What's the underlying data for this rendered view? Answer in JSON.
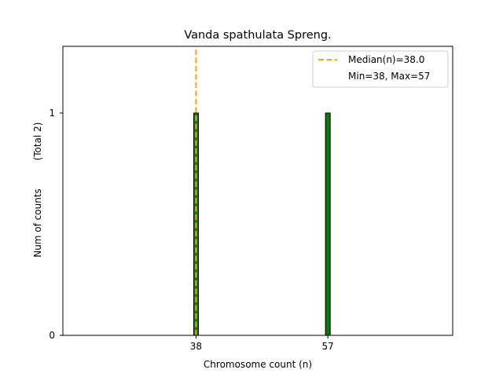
{
  "chart_data": {
    "type": "bar",
    "title": "Vanda spathulata Spreng.",
    "xlabel": "Chromosome count (n)",
    "ylabel": "Num of counts",
    "ylabel_total": "(Total 2)",
    "x": [
      38,
      57
    ],
    "values": [
      1,
      1
    ],
    "xticks": [
      "38",
      "57"
    ],
    "yticks": [
      "0",
      "1"
    ],
    "xlim": [
      18.8,
      75.0
    ],
    "ylim": [
      0,
      1.3
    ],
    "median": 38.0,
    "legend": {
      "placement": "top-right",
      "entries": [
        "Median(n)=38.0",
        "Min=38, Max=57"
      ]
    },
    "colors": {
      "bar": "#008000",
      "bar_edge": "#000000",
      "median": "#ffa500"
    },
    "grid": false
  }
}
